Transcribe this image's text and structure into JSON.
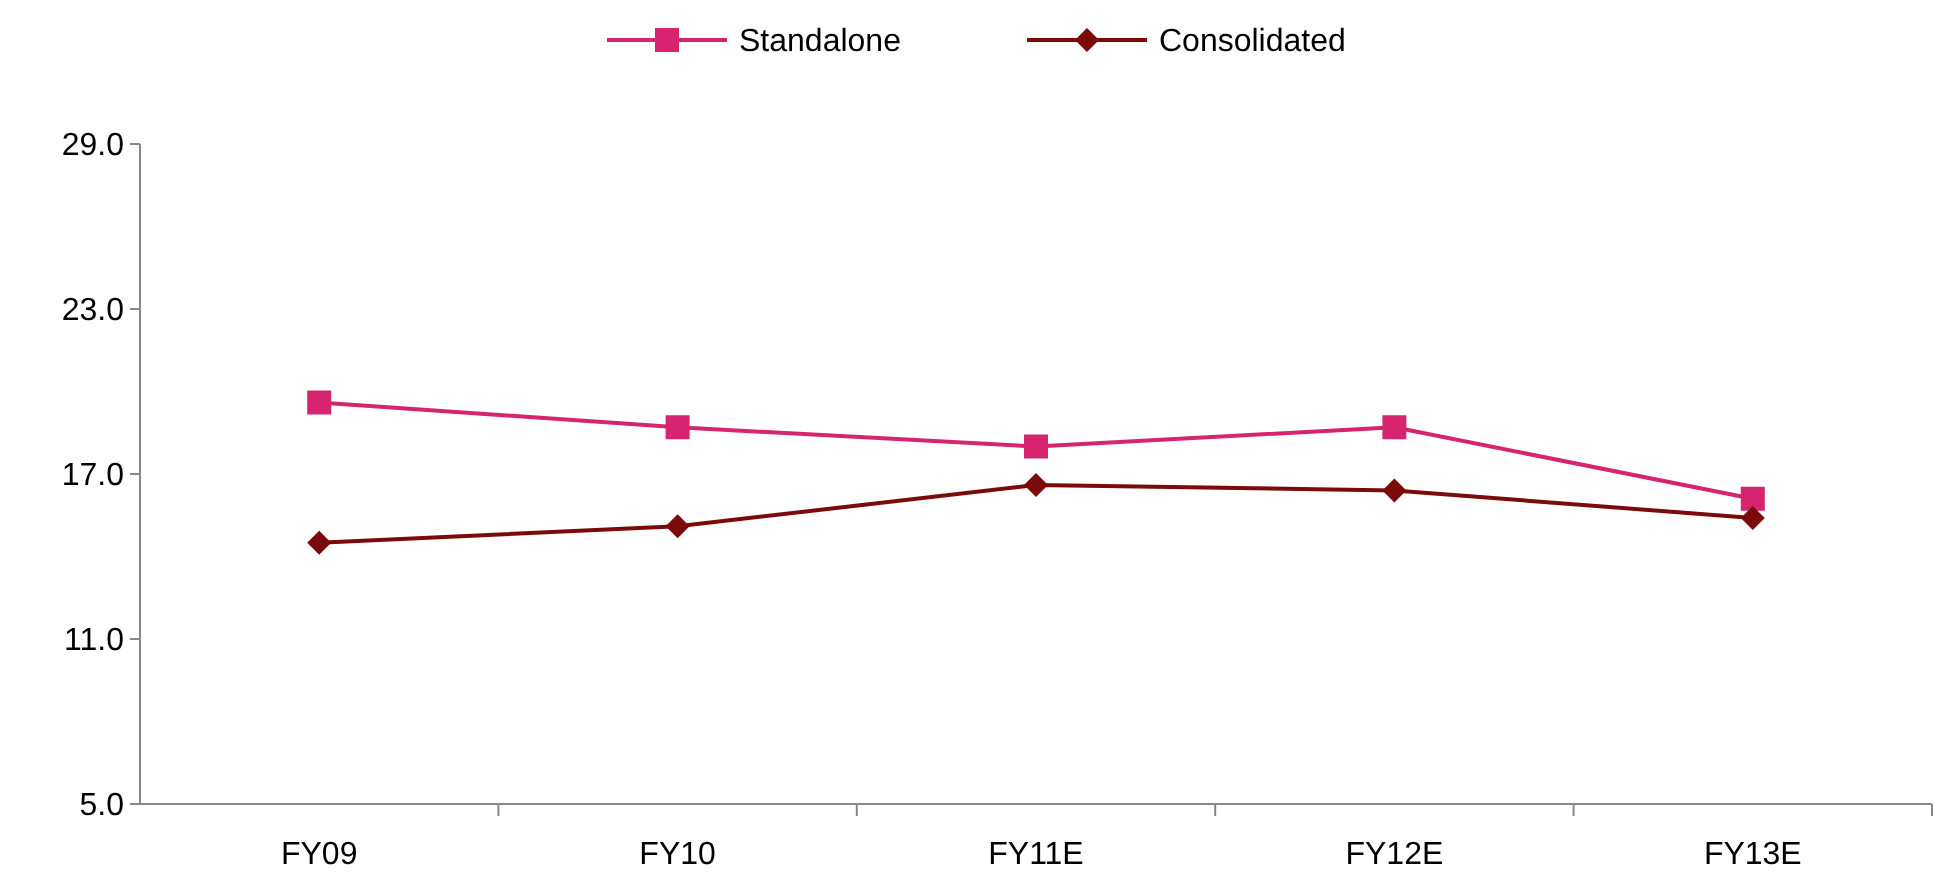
{
  "chart_data": {
    "type": "line",
    "categories": [
      "FY09",
      "FY10",
      "FY11E",
      "FY12E",
      "FY13E"
    ],
    "series": [
      {
        "name": "Standalone",
        "color": "#d6246e",
        "values": [
          19.6,
          18.7,
          18.0,
          18.7,
          16.1
        ],
        "marker": "square"
      },
      {
        "name": "Consolidated",
        "color": "#7b0a0a",
        "values": [
          14.5,
          15.1,
          16.6,
          16.4,
          15.4
        ],
        "marker": "diamond"
      }
    ],
    "ylim": [
      5,
      29
    ],
    "yticks": [
      {
        "value": 5,
        "label": "5.0"
      },
      {
        "value": 11,
        "label": "11.0"
      },
      {
        "value": 17,
        "label": "17.0"
      },
      {
        "value": 23,
        "label": "23.0"
      },
      {
        "value": 29,
        "label": "29.0"
      }
    ],
    "grid": false,
    "legend": "top",
    "line_style": "solid"
  }
}
